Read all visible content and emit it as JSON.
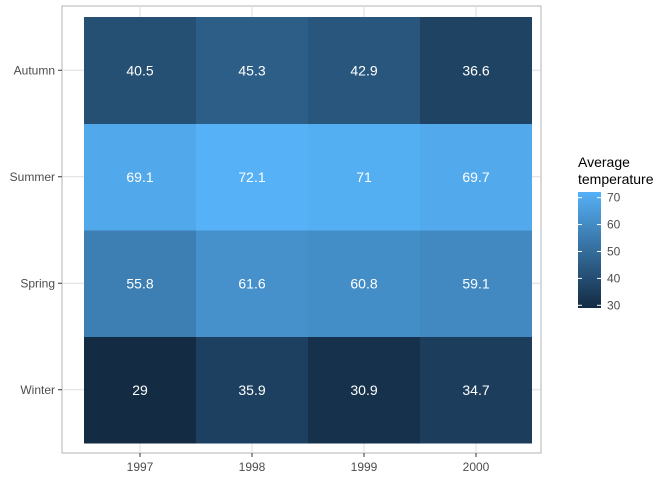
{
  "chart_data": {
    "type": "heatmap",
    "x_categories": [
      "1997",
      "1998",
      "1999",
      "2000"
    ],
    "y_categories": [
      "Winter",
      "Spring",
      "Summer",
      "Autumn"
    ],
    "values": [
      [
        29,
        35.9,
        30.9,
        34.7
      ],
      [
        55.8,
        61.6,
        60.8,
        59.1
      ],
      [
        69.1,
        72.1,
        71,
        69.7
      ],
      [
        40.5,
        45.3,
        42.9,
        36.6
      ]
    ],
    "cell_labels": [
      [
        "29",
        "35.9",
        "30.9",
        "34.7"
      ],
      [
        "55.8",
        "61.6",
        "60.8",
        "59.1"
      ],
      [
        "69.1",
        "72.1",
        "71",
        "69.7"
      ],
      [
        "40.5",
        "45.3",
        "42.9",
        "36.6"
      ]
    ],
    "legend": {
      "title_lines": [
        "Average",
        "temperature"
      ],
      "ticks": [
        30,
        40,
        50,
        60,
        70
      ],
      "range": [
        29,
        72.1
      ],
      "placement": "right"
    },
    "colors": {
      "low": "#132B43",
      "high": "#56B1F7"
    },
    "grid": true
  }
}
